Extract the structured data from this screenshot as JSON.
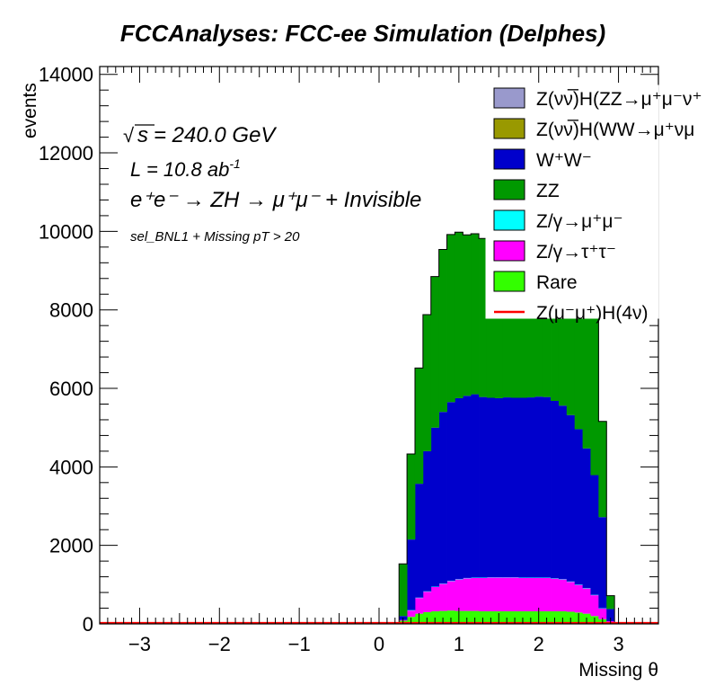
{
  "chart_data": {
    "type": "bar",
    "stacked": true,
    "title": "FCCAnalyses: FCC-ee Simulation (Delphes)",
    "xlabel": "Missing θ",
    "ylabel": "events",
    "xlim": [
      -3.5,
      3.5
    ],
    "ylim": [
      0,
      14200
    ],
    "x_ticks": [
      "−3",
      "−2",
      "−1",
      "0",
      "1",
      "2",
      "3"
    ],
    "x_tick_values": [
      -3,
      -2,
      -1,
      0,
      1,
      2,
      3
    ],
    "y_ticks": [
      "0",
      "2000",
      "4000",
      "6000",
      "8000",
      "10000",
      "12000",
      "14000"
    ],
    "y_tick_values": [
      0,
      2000,
      4000,
      6000,
      8000,
      10000,
      12000,
      14000
    ],
    "grid": false,
    "legend_position": "top-right",
    "annotations": {
      "sqrt_s": "s",
      "energy": " = 240.0 GeV",
      "lumi": "L = 10.8 ab",
      "lumi_exp": "-1",
      "process": "e⁺e⁻ → ZH → μ⁺μ⁻ + Invisible",
      "selection": "sel_BNL1 + Missing pT > 20"
    },
    "bins": {
      "lo": [
        0.25,
        0.35,
        0.45,
        0.55,
        0.65,
        0.75,
        0.85,
        0.95,
        1.05,
        1.15,
        1.25,
        1.35,
        1.45,
        1.55,
        1.65,
        1.75,
        1.85,
        1.95,
        2.05,
        2.15,
        2.25,
        2.35,
        2.45,
        2.55,
        2.65,
        2.75,
        2.85
      ],
      "hi": [
        0.35,
        0.45,
        0.55,
        0.65,
        0.75,
        0.85,
        0.95,
        1.05,
        1.15,
        1.25,
        1.35,
        1.45,
        1.55,
        1.65,
        1.75,
        1.85,
        1.95,
        2.05,
        2.15,
        2.25,
        2.35,
        2.45,
        2.55,
        2.65,
        2.75,
        2.85,
        2.95
      ]
    },
    "series": [
      {
        "name": "Rare",
        "color": "#33ff00",
        "values": [
          80,
          180,
          260,
          300,
          320,
          330,
          340,
          330,
          330,
          330,
          320,
          320,
          320,
          320,
          320,
          320,
          320,
          320,
          320,
          320,
          320,
          310,
          290,
          260,
          200,
          120,
          30
        ]
      },
      {
        "name": "Z/γ→τ⁺τ⁻",
        "color": "#ff00ff",
        "values": [
          20,
          160,
          400,
          520,
          620,
          690,
          750,
          800,
          830,
          840,
          850,
          860,
          860,
          860,
          860,
          850,
          850,
          850,
          850,
          830,
          810,
          760,
          700,
          640,
          530,
          270,
          40
        ]
      },
      {
        "name": "Z/γ→μ⁺μ⁻",
        "color": "#00ffff",
        "values": [
          0,
          10,
          10,
          10,
          10,
          10,
          10,
          10,
          10,
          10,
          10,
          10,
          10,
          10,
          10,
          10,
          10,
          10,
          10,
          10,
          10,
          10,
          10,
          10,
          10,
          10,
          0
        ]
      },
      {
        "name": "W⁺W⁻",
        "color": "#0000cc",
        "values": [
          100,
          1800,
          2900,
          3570,
          4050,
          4370,
          4550,
          4610,
          4640,
          4670,
          4600,
          4570,
          4560,
          4580,
          4570,
          4580,
          4590,
          4610,
          4600,
          4520,
          4420,
          4240,
          3960,
          3560,
          3050,
          2320,
          310
        ]
      },
      {
        "name": "ZZ",
        "color": "#009900",
        "values": [
          1330,
          2180,
          2950,
          3480,
          3850,
          4140,
          4270,
          4230,
          4100,
          4090,
          4040,
          3860,
          3710,
          3620,
          3550,
          3510,
          3490,
          3470,
          3460,
          3570,
          3740,
          3800,
          3870,
          4040,
          4090,
          2440,
          340
        ]
      },
      {
        "name": "Z(νν̅)H(WW→μ⁺νμ⁻ν̅)",
        "color": "#999900",
        "values": [
          0,
          0,
          0,
          0,
          0,
          0,
          0,
          0,
          0,
          0,
          0,
          0,
          0,
          0,
          0,
          0,
          0,
          0,
          0,
          0,
          0,
          0,
          0,
          0,
          0,
          0,
          0
        ]
      },
      {
        "name": "Z(νν̅)H(ZZ→μ⁺μ⁻ν⁺ν⁻)",
        "color": "#9999cc",
        "values": [
          0,
          0,
          0,
          0,
          0,
          0,
          0,
          0,
          0,
          0,
          0,
          0,
          0,
          0,
          0,
          0,
          0,
          0,
          0,
          0,
          0,
          0,
          0,
          0,
          0,
          0,
          0
        ]
      }
    ],
    "signal": {
      "name": "Z(μ⁻μ⁺)H(4ν)",
      "color": "#ff0000",
      "value": 20
    },
    "legend": [
      {
        "label": "Z(νν̅)H(ZZ→μ⁺μ⁻ν⁺",
        "color": "#9999cc",
        "kind": "box"
      },
      {
        "label": "Z(νν̅)H(WW→μ⁺νμ",
        "color": "#999900",
        "kind": "box"
      },
      {
        "label": "W⁺W⁻",
        "color": "#0000cc",
        "kind": "box"
      },
      {
        "label": "ZZ",
        "color": "#009900",
        "kind": "box"
      },
      {
        "label": "Z/γ→μ⁺μ⁻",
        "color": "#00ffff",
        "kind": "box"
      },
      {
        "label": "Z/γ→τ⁺τ⁻",
        "color": "#ff00ff",
        "kind": "box"
      },
      {
        "label": "Rare",
        "color": "#33ff00",
        "kind": "box"
      },
      {
        "label": "Z(μ⁻μ⁺)H(4ν)",
        "color": "#ff0000",
        "kind": "line"
      }
    ]
  }
}
